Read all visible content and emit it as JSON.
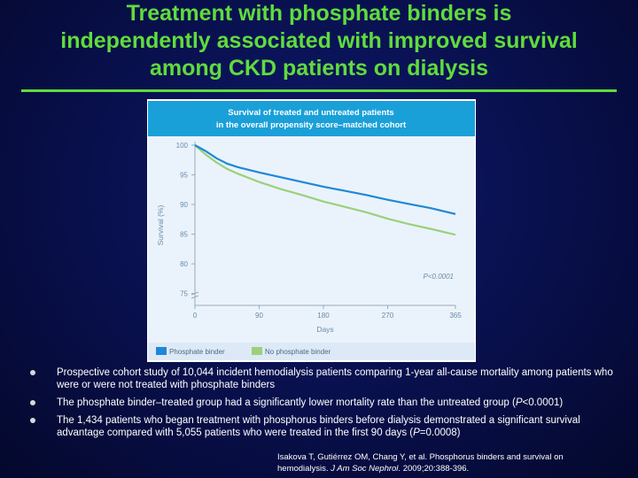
{
  "slide": {
    "title_lines": [
      "Treatment with phosphate binders is",
      "independently associated with improved survival",
      "among CKD patients on dialysis"
    ]
  },
  "colors": {
    "accent_green": "#5fdc3c",
    "chart_header": "#1aa0d8",
    "treated_line": "#1e88d8",
    "untreated_line": "#9cd07a",
    "background": "#0a1257"
  },
  "chart_data": {
    "type": "line",
    "title_lines": [
      "Survival of treated and untreated patients",
      "in the overall propensity score–matched cohort"
    ],
    "xlabel": "Days",
    "ylabel": "Survival (%)",
    "x_ticks": [
      0,
      90,
      180,
      270,
      365
    ],
    "y_ticks": [
      75,
      80,
      85,
      90,
      95,
      100
    ],
    "xlim": [
      0,
      365
    ],
    "ylim": [
      73,
      100
    ],
    "annotation": "P<0.0001",
    "series": [
      {
        "name": "Phosphate binder",
        "color": "#1e88d8",
        "x": [
          0,
          15,
          30,
          45,
          60,
          90,
          120,
          150,
          180,
          210,
          240,
          270,
          300,
          330,
          365
        ],
        "y": [
          100,
          99.0,
          97.8,
          96.9,
          96.3,
          95.4,
          94.6,
          93.8,
          93.0,
          92.3,
          91.6,
          90.8,
          90.1,
          89.4,
          88.4
        ]
      },
      {
        "name": "No phosphate binder",
        "color": "#9cd07a",
        "x": [
          0,
          15,
          30,
          45,
          60,
          90,
          120,
          150,
          180,
          210,
          240,
          270,
          300,
          330,
          365
        ],
        "y": [
          100,
          98.4,
          97.1,
          96.0,
          95.2,
          93.8,
          92.6,
          91.6,
          90.5,
          89.6,
          88.7,
          87.6,
          86.7,
          85.9,
          84.9
        ]
      }
    ]
  },
  "bullets": [
    {
      "text": "Prospective cohort study of 10,044 incident hemodialysis patients comparing 1-year all-cause mortality among patients who were or were not treated with phosphate binders"
    },
    {
      "before": "The phosphate binder–treated group had a significantly lower mortality rate than the untreated group (",
      "pval": "P",
      "after": "<0.0001)"
    },
    {
      "before": "The 1,434 patients who began treatment with phosphorus binders before dialysis demonstrated a significant survival advantage compared with 5,055 patients who were treated in the first 90 days (",
      "pval": "P",
      "after": "=0.0008)"
    }
  ],
  "citation": {
    "line1": "Isakova T, Gutiérrez OM, Chang Y, et al. Phosphorus binders and survival on",
    "line2_before": "hemodialysis. ",
    "journal": "J Am Soc Nephrol",
    "line2_after": ". 2009;20:388-396."
  }
}
